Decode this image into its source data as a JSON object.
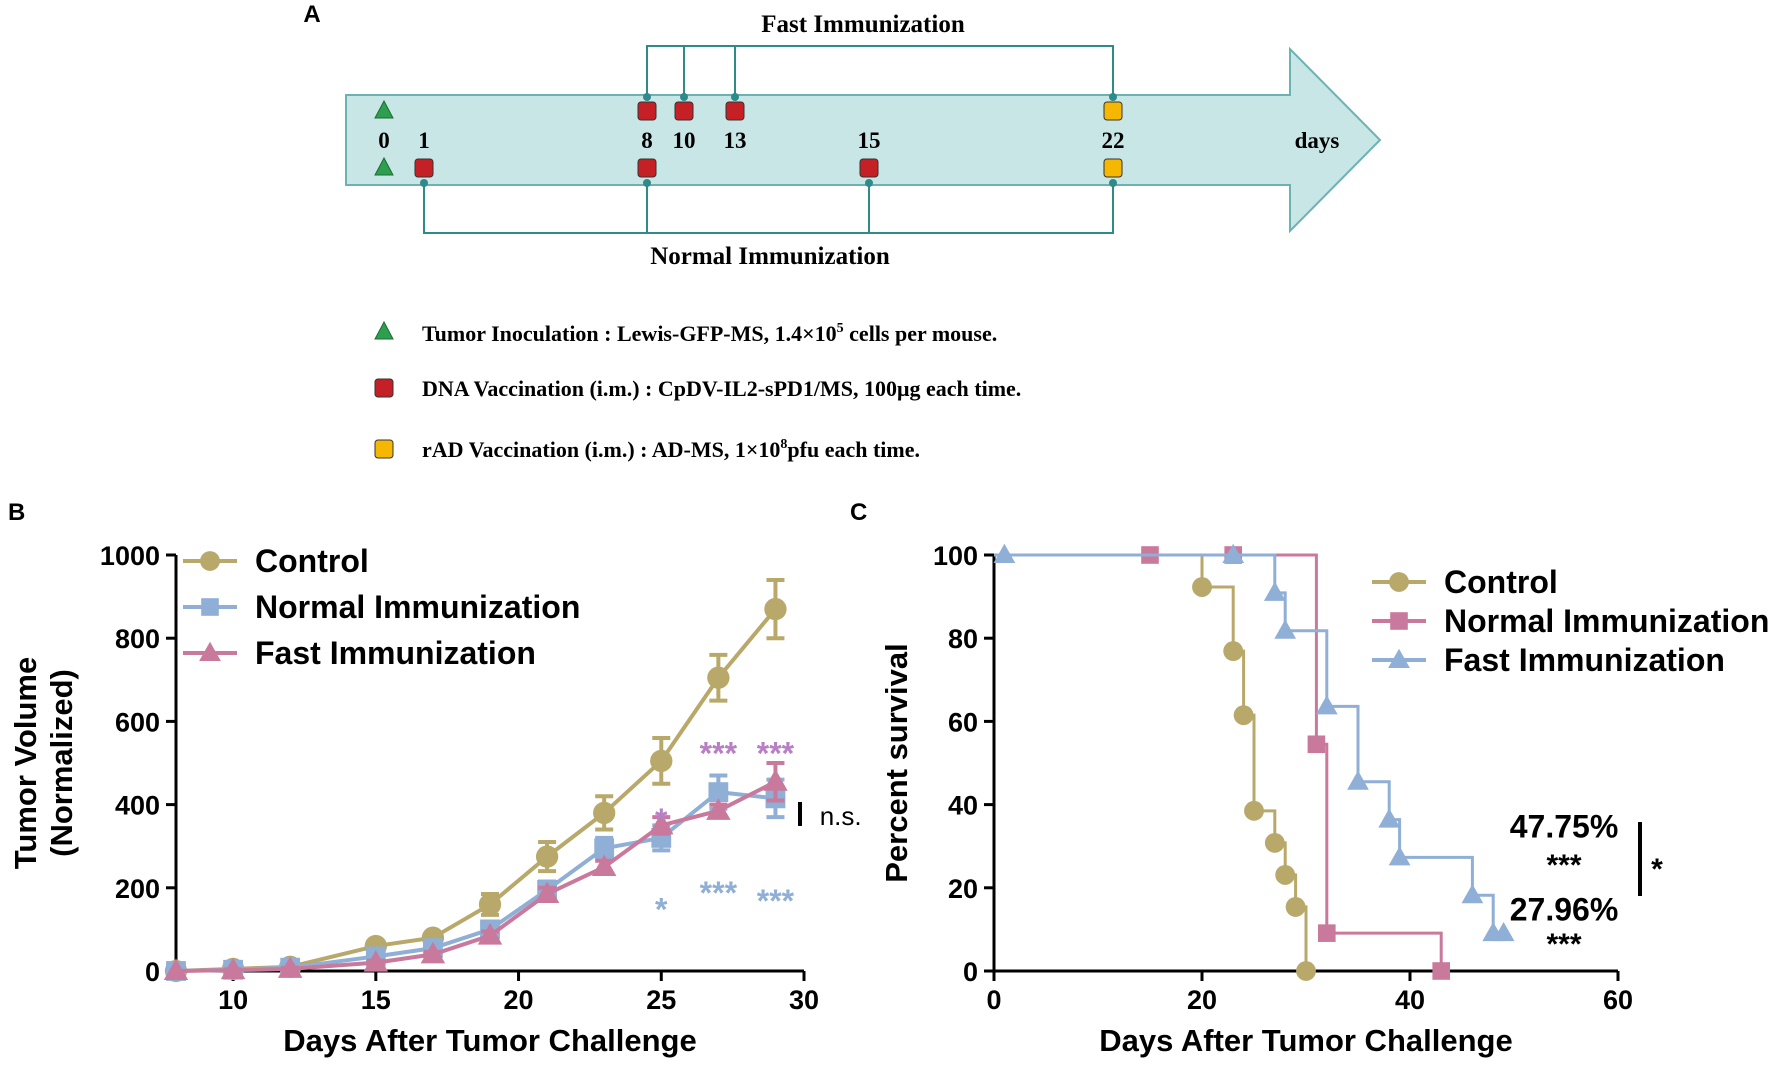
{
  "panel_labels": {
    "a": "A",
    "b": "B",
    "c": "C"
  },
  "schedule": {
    "fast_title": "Fast Immunization",
    "normal_title": "Normal Immunization",
    "axis_unit": "days",
    "day_labels": [
      "0",
      "1",
      "8",
      "10",
      "13",
      "15",
      "22"
    ],
    "fast_days": [
      8,
      10,
      13,
      22
    ],
    "normal_days": [
      1,
      8,
      15,
      22
    ],
    "events": [
      {
        "day": 0,
        "row": "top",
        "kind": "tumor"
      },
      {
        "day": 0,
        "row": "bottom",
        "kind": "tumor"
      },
      {
        "day": 8,
        "row": "top",
        "kind": "dna"
      },
      {
        "day": 10,
        "row": "top",
        "kind": "dna"
      },
      {
        "day": 13,
        "row": "top",
        "kind": "dna"
      },
      {
        "day": 22,
        "row": "top",
        "kind": "rad"
      },
      {
        "day": 1,
        "row": "bottom",
        "kind": "dna"
      },
      {
        "day": 8,
        "row": "bottom",
        "kind": "dna"
      },
      {
        "day": 15,
        "row": "bottom",
        "kind": "dna"
      },
      {
        "day": 22,
        "row": "bottom",
        "kind": "rad"
      }
    ],
    "legend": [
      {
        "kind": "tumor",
        "pre": "Tumor Inoculation : Lewis-GFP-MS, 1.4×10",
        "sup": "5",
        "post": " cells per mouse."
      },
      {
        "kind": "dna",
        "pre": "DNA Vaccination (i.m.) : CpDV-IL2-sPD1/MS, 100μg each time.",
        "sup": "",
        "post": ""
      },
      {
        "kind": "rad",
        "pre": "rAD Vaccination (i.m.) : AD-MS, 1×10",
        "sup": "8",
        "post": "pfu each time."
      }
    ]
  },
  "colors": {
    "control": "#b8a86a",
    "normal": "#8fafd6",
    "fast": "#c97a9c",
    "bracket": "#2f8a8a",
    "arrow_fill": "#c8e6e6",
    "arrow_stroke": "#6cb2b2",
    "tumor": "#2e9e4f",
    "dna": "#c42026",
    "rad": "#f5b700",
    "star_fast": "#b77fc4",
    "star_normal": "#8fafd6"
  },
  "chart_data": [
    {
      "type": "line",
      "panel": "B",
      "title": "",
      "xlabel": "Days After Tumor Challenge",
      "ylabel_lines": [
        "Tumor Volume",
        "(Normalized)"
      ],
      "xlim": [
        8,
        30
      ],
      "ylim": [
        0,
        1000
      ],
      "xticks": [
        10,
        15,
        20,
        25,
        30
      ],
      "yticks": [
        0,
        200,
        400,
        600,
        800,
        1000
      ],
      "legend_position": "top-left",
      "series": [
        {
          "name": "Control",
          "marker": "circle",
          "color": "#b8a86a",
          "x": [
            8,
            10,
            12,
            15,
            17,
            19,
            21,
            23,
            25,
            27,
            29
          ],
          "y": [
            0,
            5,
            10,
            60,
            80,
            160,
            275,
            380,
            505,
            705,
            870
          ],
          "err": [
            0,
            3,
            4,
            8,
            10,
            25,
            35,
            40,
            55,
            55,
            70
          ]
        },
        {
          "name": "Normal Immunization",
          "marker": "square",
          "color": "#8fafd6",
          "x": [
            8,
            10,
            12,
            15,
            17,
            19,
            21,
            23,
            25,
            27,
            29
          ],
          "y": [
            0,
            3,
            8,
            35,
            55,
            100,
            195,
            295,
            320,
            430,
            415
          ],
          "err": [
            0,
            2,
            3,
            6,
            8,
            12,
            20,
            25,
            30,
            40,
            45
          ]
        },
        {
          "name": "Fast Immunization",
          "marker": "triangle",
          "color": "#c97a9c",
          "x": [
            8,
            10,
            12,
            15,
            17,
            19,
            21,
            23,
            25,
            27,
            29
          ],
          "y": [
            0,
            2,
            5,
            20,
            40,
            85,
            185,
            250,
            350,
            385,
            455
          ],
          "err": [
            0,
            2,
            3,
            5,
            6,
            10,
            15,
            15,
            20,
            15,
            45
          ]
        }
      ],
      "annotations": [
        {
          "text": "*",
          "x": 25,
          "y": 370,
          "color": "#b77fc4"
        },
        {
          "text": "***",
          "x": 27,
          "y": 530,
          "color": "#b77fc4"
        },
        {
          "text": "***",
          "x": 29,
          "y": 530,
          "color": "#b77fc4"
        },
        {
          "text": "*",
          "x": 25,
          "y": 155,
          "color": "#8fafd6"
        },
        {
          "text": "***",
          "x": 27,
          "y": 195,
          "color": "#8fafd6"
        },
        {
          "text": "***",
          "x": 29,
          "y": 175,
          "color": "#8fafd6"
        },
        {
          "text": "n.s.",
          "x": 30.2,
          "y": 370,
          "color": "#000000"
        }
      ]
    },
    {
      "type": "line",
      "panel": "C",
      "title": "",
      "xlabel": "Days After Tumor Challenge",
      "ylabel": "Percent survival",
      "xlim": [
        0,
        60
      ],
      "ylim": [
        0,
        100
      ],
      "xticks": [
        0,
        20,
        40,
        60
      ],
      "yticks": [
        0,
        20,
        40,
        60,
        80,
        100
      ],
      "legend_position": "top-right",
      "series": [
        {
          "name": "Control",
          "marker": "circle",
          "color": "#b8a86a",
          "steps": [
            [
              0,
              100
            ],
            [
              20,
              92.3
            ],
            [
              23,
              76.9
            ],
            [
              24,
              61.5
            ],
            [
              25,
              38.5
            ],
            [
              27,
              30.8
            ],
            [
              28,
              23.1
            ],
            [
              29,
              15.4
            ],
            [
              30,
              0
            ]
          ],
          "markers": [
            [
              20,
              92.3
            ],
            [
              23,
              76.9
            ],
            [
              24,
              61.5
            ],
            [
              25,
              38.5
            ],
            [
              27,
              30.8
            ],
            [
              28,
              23.1
            ],
            [
              29,
              15.4
            ],
            [
              30,
              0
            ]
          ]
        },
        {
          "name": "Normal Immunization",
          "marker": "square",
          "color": "#c97a9c",
          "steps": [
            [
              0,
              100
            ],
            [
              29,
              100
            ],
            [
              31,
              54.5
            ],
            [
              32,
              9.1
            ],
            [
              43,
              0
            ]
          ],
          "markers": [
            [
              15,
              100
            ],
            [
              23,
              100
            ],
            [
              31,
              54.5
            ],
            [
              32,
              9.1
            ],
            [
              43,
              0
            ]
          ]
        },
        {
          "name": "Fast Immunization",
          "marker": "triangle",
          "color": "#8fafd6",
          "steps": [
            [
              0,
              100
            ],
            [
              27,
              90.9
            ],
            [
              28,
              81.8
            ],
            [
              32,
              63.6
            ],
            [
              35,
              45.5
            ],
            [
              38,
              36.4
            ],
            [
              39,
              27.3
            ],
            [
              46,
              18.2
            ],
            [
              48,
              9.1
            ],
            [
              49,
              9.1
            ]
          ],
          "markers": [
            [
              1,
              100
            ],
            [
              23,
              100
            ],
            [
              27,
              90.9
            ],
            [
              28,
              81.8
            ],
            [
              32,
              63.6
            ],
            [
              35,
              45.5
            ],
            [
              38,
              36.4
            ],
            [
              39,
              27.3
            ],
            [
              46,
              18.2
            ],
            [
              48,
              9.1
            ],
            [
              49,
              9.1
            ]
          ]
        }
      ],
      "annotations": [
        {
          "text": "47.75%",
          "x": 56,
          "y": 35,
          "color": "#000000"
        },
        {
          "text": "***",
          "x": 56,
          "y": 26,
          "color": "#000000"
        },
        {
          "text": "27.96%",
          "x": 56,
          "y": 15,
          "color": "#000000"
        },
        {
          "text": "***",
          "x": 56,
          "y": 7,
          "color": "#000000"
        },
        {
          "text": "*",
          "x": 63,
          "y": 25,
          "color": "#000000"
        }
      ]
    }
  ]
}
